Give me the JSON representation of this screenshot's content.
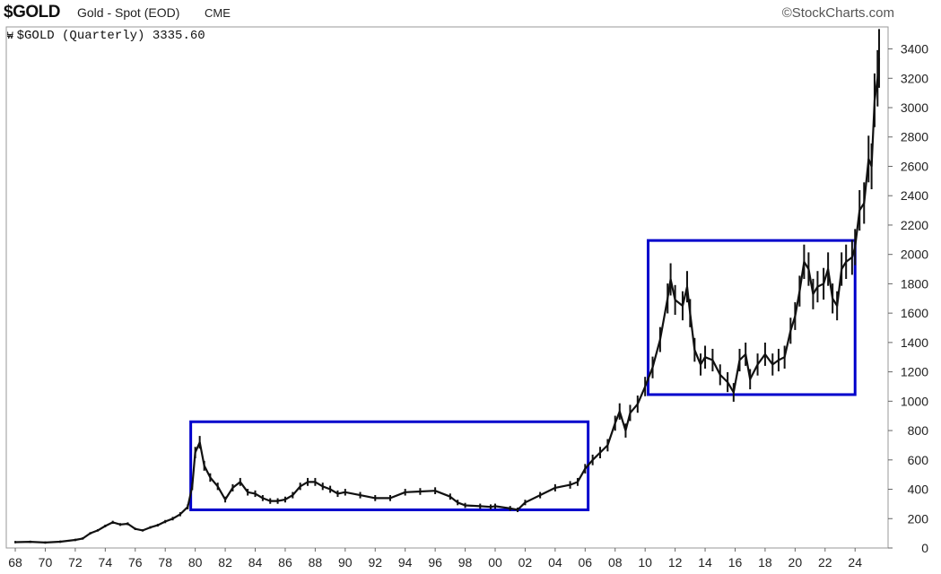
{
  "header": {
    "symbol": "$GOLD",
    "description": "Gold - Spot (EOD)",
    "exchange": "CME",
    "watermark": "©StockCharts.com"
  },
  "legend": {
    "glyph": "₩",
    "text": "$GOLD (Quarterly) 3335.60"
  },
  "chart_data": {
    "type": "line",
    "title": "$GOLD (Quarterly) 3335.60",
    "xlabel": "",
    "ylabel": "",
    "ylim": [
      0,
      3550
    ],
    "xlim": [
      1967.4,
      2026.2
    ],
    "grid": false,
    "y_axis_position": "right",
    "y_ticks": [
      0,
      200,
      400,
      600,
      800,
      1000,
      1200,
      1400,
      1600,
      1800,
      2000,
      2200,
      2400,
      2600,
      2800,
      3000,
      3200,
      3400
    ],
    "x_tick_labels": [
      "68",
      "70",
      "72",
      "74",
      "76",
      "78",
      "80",
      "82",
      "84",
      "86",
      "88",
      "90",
      "92",
      "94",
      "96",
      "98",
      "00",
      "02",
      "04",
      "06",
      "08",
      "10",
      "12",
      "14",
      "16",
      "18",
      "20",
      "22",
      "24"
    ],
    "x_tick_years": [
      1968,
      1970,
      1972,
      1974,
      1976,
      1978,
      1980,
      1982,
      1984,
      1986,
      1988,
      1990,
      1992,
      1994,
      1996,
      1998,
      2000,
      2002,
      2004,
      2006,
      2008,
      2010,
      2012,
      2014,
      2016,
      2018,
      2020,
      2022,
      2024
    ],
    "series": [
      {
        "color": "#111111",
        "x": [
          1968.0,
          1969.0,
          1970.0,
          1971.0,
          1972.0,
          1972.5,
          1973.0,
          1973.5,
          1974.0,
          1974.5,
          1975.0,
          1975.5,
          1976.0,
          1976.5,
          1977.0,
          1977.5,
          1978.0,
          1978.5,
          1979.0,
          1979.5,
          1979.8,
          1980.0,
          1980.3,
          1980.6,
          1981.0,
          1981.5,
          1982.0,
          1982.5,
          1983.0,
          1983.5,
          1984.0,
          1984.5,
          1985.0,
          1985.5,
          1986.0,
          1986.5,
          1987.0,
          1987.5,
          1988.0,
          1988.5,
          1989.0,
          1989.5,
          1990.0,
          1991.0,
          1992.0,
          1993.0,
          1994.0,
          1995.0,
          1996.0,
          1997.0,
          1997.5,
          1998.0,
          1999.0,
          1999.7,
          2000.0,
          2001.0,
          2001.5,
          2002.0,
          2003.0,
          2004.0,
          2005.0,
          2005.5,
          2006.0,
          2006.5,
          2007.0,
          2007.5,
          2008.0,
          2008.3,
          2008.7,
          2009.0,
          2009.5,
          2010.0,
          2010.5,
          2011.0,
          2011.5,
          2011.7,
          2012.0,
          2012.5,
          2012.8,
          2013.0,
          2013.3,
          2013.7,
          2014.0,
          2014.5,
          2015.0,
          2015.5,
          2015.9,
          2016.3,
          2016.7,
          2017.0,
          2017.5,
          2018.0,
          2018.5,
          2018.9,
          2019.3,
          2019.7,
          2020.0,
          2020.3,
          2020.6,
          2020.9,
          2021.2,
          2021.5,
          2021.9,
          2022.2,
          2022.5,
          2022.8,
          2023.1,
          2023.4,
          2023.8,
          2024.0,
          2024.3,
          2024.6,
          2024.9,
          2025.1,
          2025.3,
          2025.5,
          2025.6
        ],
        "y": [
          40,
          42,
          37,
          43,
          55,
          65,
          100,
          120,
          150,
          175,
          160,
          165,
          130,
          120,
          140,
          155,
          180,
          200,
          230,
          280,
          420,
          650,
          720,
          560,
          480,
          420,
          330,
          410,
          450,
          380,
          370,
          340,
          320,
          320,
          330,
          360,
          420,
          450,
          450,
          420,
          400,
          370,
          380,
          360,
          340,
          340,
          380,
          385,
          390,
          350,
          310,
          290,
          285,
          280,
          285,
          270,
          260,
          310,
          360,
          410,
          430,
          450,
          540,
          600,
          650,
          700,
          850,
          930,
          800,
          920,
          980,
          1100,
          1230,
          1420,
          1700,
          1830,
          1690,
          1650,
          1780,
          1600,
          1350,
          1250,
          1300,
          1280,
          1180,
          1130,
          1060,
          1280,
          1320,
          1150,
          1250,
          1320,
          1250,
          1280,
          1300,
          1480,
          1580,
          1750,
          1950,
          1900,
          1730,
          1780,
          1800,
          1900,
          1700,
          1650,
          1900,
          1950,
          1980,
          2050,
          2300,
          2350,
          2650,
          2600,
          3050,
          3200,
          3335.6
        ]
      }
    ],
    "annotations": [
      {
        "type": "rectangle",
        "color": "#0000cc",
        "x": [
          1979.7,
          2006.2
        ],
        "y": [
          260,
          860
        ]
      },
      {
        "type": "rectangle",
        "color": "#0000cc",
        "x": [
          2010.2,
          2024.0
        ],
        "y": [
          1045,
          2095
        ]
      }
    ]
  }
}
